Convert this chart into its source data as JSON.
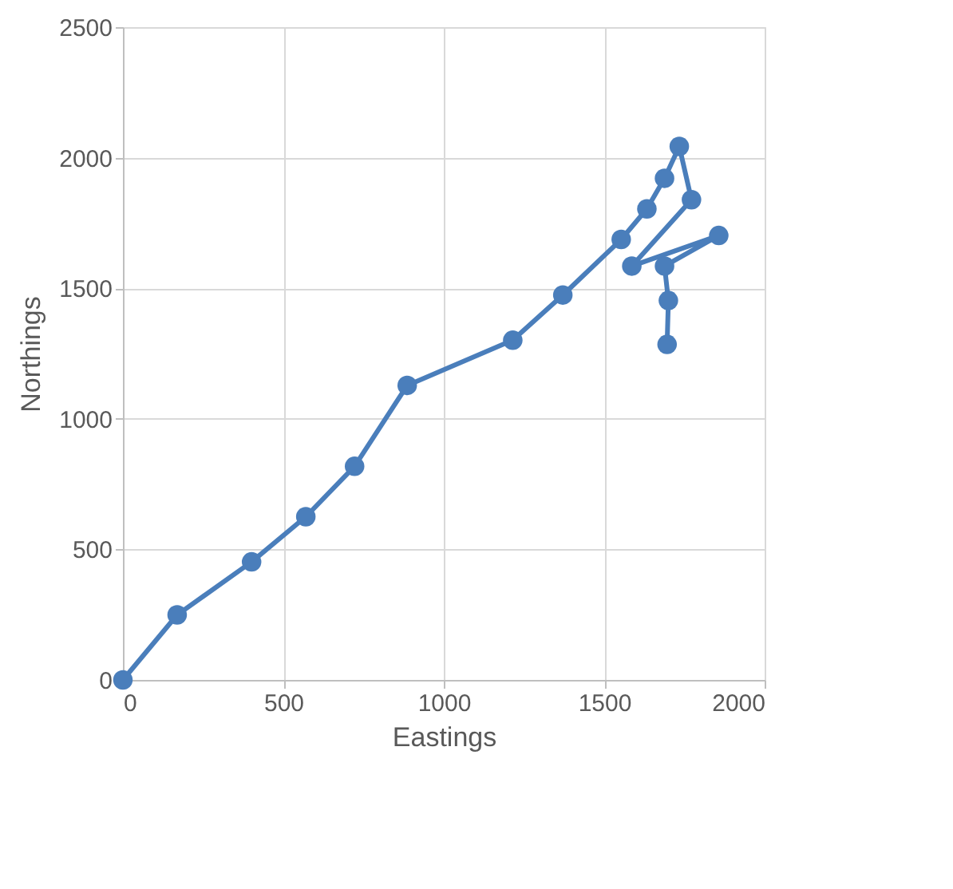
{
  "chart_data": {
    "type": "line",
    "xlabel": "Eastings",
    "ylabel": "Northings",
    "x": [
      0,
      169,
      401,
      570,
      722,
      886,
      1215,
      1371,
      1553,
      1633,
      1688,
      1734,
      1772,
      1586,
      1857,
      1688,
      1700,
      1696
    ],
    "series": [
      {
        "color": "#4a7ebb",
        "values": [
          0,
          249,
          452,
          625,
          818,
          1128,
          1301,
          1474,
          1687,
          1804,
          1921,
          2043,
          1839,
          1585,
          1702,
          1585,
          1453,
          1285
        ]
      }
    ],
    "xlim": [
      0,
      2000
    ],
    "xticks": [
      0,
      500,
      1000,
      1500,
      2000
    ],
    "ylim": [
      0,
      2500
    ],
    "yticks": [
      0,
      500,
      1000,
      1500,
      2000,
      2500
    ],
    "grid": true,
    "marker": "circle",
    "line_style": "solid"
  }
}
